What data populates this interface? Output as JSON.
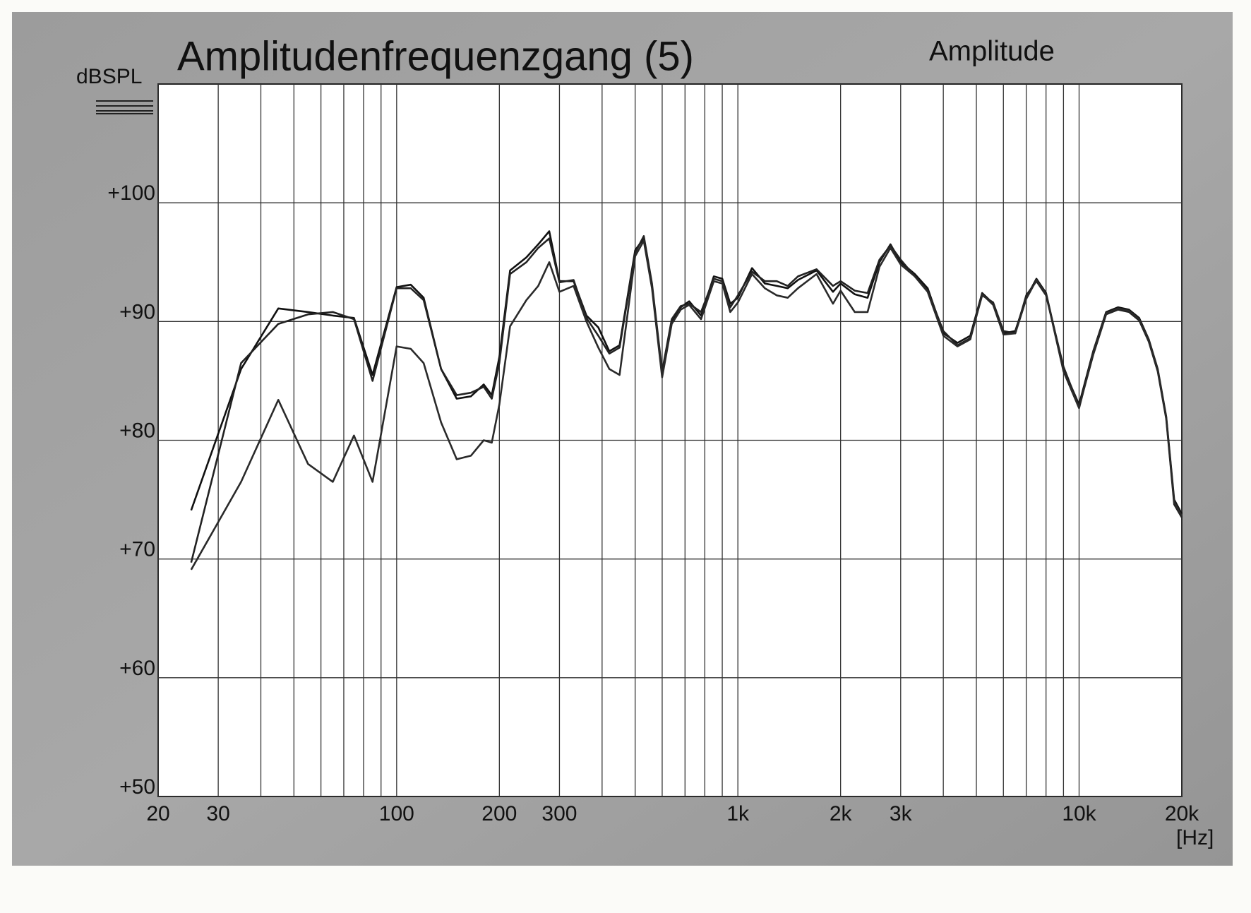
{
  "chart_data": {
    "type": "line",
    "title": "Amplitudenfrequenzgang (5)",
    "subtitle": "Amplitude",
    "y_label": "dBSPL",
    "x_label": "[Hz]",
    "log_x": true,
    "grid": true,
    "xlim": [
      20,
      20000
    ],
    "ylim": [
      50,
      110
    ],
    "xticks": [
      20,
      30,
      100,
      200,
      300,
      {
        "value": 1000,
        "label": "1k"
      },
      {
        "value": 2000,
        "label": "2k"
      },
      {
        "value": 3000,
        "label": "3k"
      },
      {
        "value": 10000,
        "label": "10k"
      },
      {
        "value": 20000,
        "label": "20k"
      }
    ],
    "x_minor_grid": [
      40,
      50,
      60,
      70,
      80,
      90,
      400,
      500,
      600,
      700,
      800,
      900,
      4000,
      5000,
      6000,
      7000,
      8000,
      9000
    ],
    "yticks": [
      {
        "value": 50,
        "label": "+50"
      },
      {
        "value": 60,
        "label": "+60"
      },
      {
        "value": 70,
        "label": "+70"
      },
      {
        "value": 80,
        "label": "+80"
      },
      {
        "value": 90,
        "label": "+90"
      },
      {
        "value": 100,
        "label": "+100"
      }
    ],
    "x": [
      25,
      35,
      45,
      55,
      65,
      75,
      85,
      100,
      110,
      120,
      135,
      150,
      165,
      180,
      190,
      200,
      215,
      240,
      260,
      280,
      300,
      330,
      360,
      390,
      420,
      450,
      500,
      530,
      560,
      600,
      640,
      680,
      720,
      780,
      850,
      900,
      950,
      1000,
      1100,
      1200,
      1300,
      1400,
      1500,
      1700,
      1900,
      2000,
      2200,
      2400,
      2600,
      2800,
      3000,
      3300,
      3600,
      4000,
      4400,
      4800,
      5200,
      5600,
      6000,
      6500,
      7000,
      7500,
      8000,
      9000,
      10000,
      11000,
      12000,
      13000,
      14000,
      15000,
      16000,
      17000,
      18000,
      19000,
      20000
    ],
    "series": [
      {
        "color": "#111111",
        "values": [
          74.1,
          86,
          91.1,
          90.8,
          90.5,
          90.3,
          85.5,
          92.9,
          93.1,
          92,
          86,
          83.5,
          83.7,
          84.7,
          83.8,
          87,
          94.3,
          95.4,
          96.5,
          97.6,
          93.4,
          93.4,
          90.5,
          89.5,
          87.5,
          88,
          96,
          97,
          93,
          85.5,
          90,
          91.2,
          91.7,
          90.5,
          93.8,
          93.6,
          91.5,
          92,
          94.5,
          93.2,
          93,
          92.8,
          93.5,
          94.3,
          92.5,
          93.2,
          92.3,
          92,
          95,
          96.5,
          95,
          94,
          92.8,
          89,
          88.2,
          88.8,
          92.4,
          91.5,
          89,
          89.2,
          92,
          93.6,
          92.4,
          86,
          83,
          87.5,
          90.8,
          91.2,
          91,
          90.3,
          88.5,
          86,
          82,
          75,
          73.8
        ]
      },
      {
        "color": "#222222",
        "values": [
          69.7,
          86.5,
          89.8,
          90.6,
          90.8,
          90.2,
          85,
          92.8,
          92.8,
          91.8,
          86,
          83.8,
          84,
          84.5,
          83.5,
          86.5,
          94,
          95,
          96.2,
          97,
          93.3,
          93.5,
          90.3,
          88.8,
          87.3,
          87.8,
          95.8,
          97.2,
          93.2,
          85.8,
          90.2,
          91.3,
          91.5,
          90.8,
          93.6,
          93.4,
          91.2,
          92.2,
          94.2,
          93.4,
          93.4,
          93,
          93.8,
          94.4,
          93,
          93.4,
          92.6,
          92.4,
          95.2,
          96.4,
          95.2,
          93.8,
          92.6,
          89.2,
          88,
          88.6,
          92.2,
          91.6,
          89.2,
          89,
          92.2,
          93.4,
          92.2,
          86.2,
          82.8,
          87.2,
          90.6,
          91,
          90.8,
          90.1,
          88.3,
          85.8,
          81.8,
          74.6,
          73.5
        ]
      },
      {
        "color": "#2a2a2a",
        "values": [
          69.1,
          76.5,
          83.4,
          78,
          76.5,
          80.4,
          76.5,
          87.9,
          87.7,
          86.5,
          81.5,
          78.4,
          78.7,
          80,
          79.8,
          83,
          89.6,
          91.8,
          93,
          95,
          92.5,
          93,
          90,
          87.8,
          86,
          85.5,
          95.5,
          96.8,
          92.8,
          85.3,
          89.8,
          91,
          91.4,
          90.2,
          93.4,
          93.2,
          90.8,
          91.6,
          94,
          92.8,
          92.2,
          92,
          92.8,
          94,
          91.5,
          92.6,
          90.8,
          90.8,
          94.6,
          96.2,
          94.8,
          93.8,
          92.5,
          88.8,
          87.9,
          88.5,
          92.3,
          91.4,
          88.9,
          89,
          91.9,
          93.5,
          92.3,
          85.8,
          82.7,
          87.4,
          90.7,
          91.1,
          90.9,
          90.2,
          88.4,
          85.9,
          81.9,
          74.8,
          73.6
        ]
      }
    ]
  }
}
